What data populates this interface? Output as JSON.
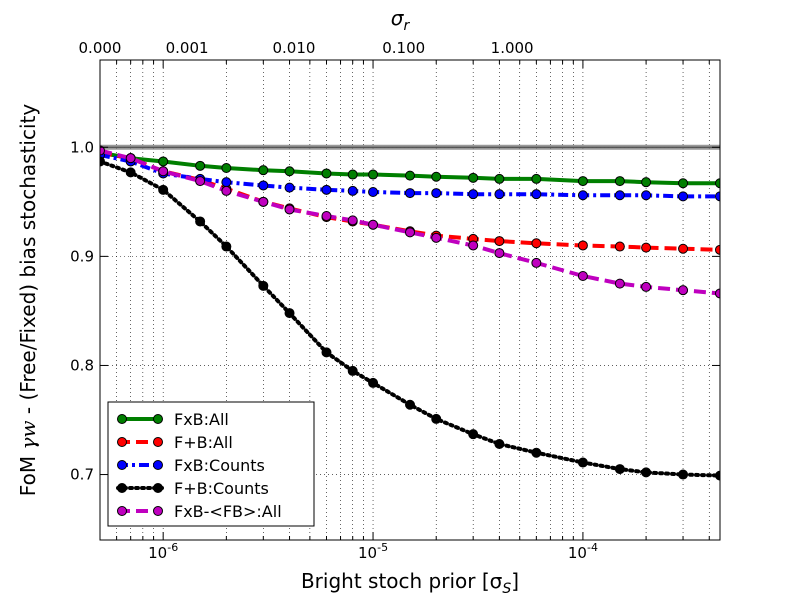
{
  "chart_data": {
    "type": "line",
    "xlabel": "Bright stoch prior [σ",
    "xlabel_sub": "S",
    "xlabel_close": "]",
    "ylabel_pre": "FoM ",
    "ylabel_math": "γw",
    "ylabel_post": " - (Free/Fixed) bias stochasticity",
    "top_axis_label": "σ",
    "top_axis_sub": "r",
    "x_scale": "log",
    "xlim": [
      5e-07,
      0.00045
    ],
    "ylim": [
      0.64,
      1.08
    ],
    "grid": true,
    "legend_position": "lower-left",
    "reference_line": {
      "y": 1.0,
      "color": "#808080"
    },
    "x_ticks": [
      {
        "value": 1e-06,
        "base": "10",
        "exp": "-6"
      },
      {
        "value": 1e-05,
        "base": "10",
        "exp": "-5"
      },
      {
        "value": 0.0001,
        "base": "10",
        "exp": "-4"
      }
    ],
    "y_ticks": [
      {
        "value": 0.7,
        "label": "0.7"
      },
      {
        "value": 0.8,
        "label": "0.8"
      },
      {
        "value": 0.9,
        "label": "0.9"
      },
      {
        "value": 1.0,
        "label": "1.0"
      }
    ],
    "top_ticks": [
      {
        "value": 5e-07,
        "label": "0.000"
      },
      {
        "value": 1.3e-06,
        "label": "0.001"
      },
      {
        "value": 4.2e-06,
        "label": "0.010"
      },
      {
        "value": 1.4e-05,
        "label": "0.100"
      },
      {
        "value": 4.6e-05,
        "label": "1.000"
      }
    ],
    "x": [
      5e-07,
      7e-07,
      1e-06,
      1.5e-06,
      2e-06,
      3e-06,
      4e-06,
      6e-06,
      8e-06,
      1e-05,
      1.5e-05,
      2e-05,
      3e-05,
      4e-05,
      6e-05,
      0.0001,
      0.00015,
      0.0002,
      0.0003,
      0.00045
    ],
    "series": [
      {
        "name": "FxB:All",
        "color": "#007f00",
        "dash": "solid",
        "values": [
          0.995,
          0.99,
          0.987,
          0.983,
          0.981,
          0.979,
          0.978,
          0.976,
          0.975,
          0.975,
          0.974,
          0.973,
          0.972,
          0.971,
          0.971,
          0.969,
          0.969,
          0.968,
          0.967,
          0.967
        ]
      },
      {
        "name": "F+B:All",
        "color": "#ff0000",
        "dash": "dashed",
        "values": [
          0.995,
          0.99,
          0.978,
          0.97,
          0.962,
          0.95,
          0.944,
          0.936,
          0.932,
          0.929,
          0.923,
          0.919,
          0.916,
          0.914,
          0.912,
          0.91,
          0.909,
          0.908,
          0.907,
          0.906
        ]
      },
      {
        "name": "FxB:Counts",
        "color": "#0000ff",
        "dash": "dashdot",
        "values": [
          0.993,
          0.987,
          0.976,
          0.971,
          0.968,
          0.965,
          0.963,
          0.961,
          0.96,
          0.959,
          0.958,
          0.958,
          0.957,
          0.957,
          0.957,
          0.956,
          0.956,
          0.956,
          0.955,
          0.955
        ]
      },
      {
        "name": "F+B:Counts",
        "color": "#000000",
        "dash": "dotted",
        "values": [
          0.987,
          0.977,
          0.961,
          0.932,
          0.909,
          0.873,
          0.848,
          0.812,
          0.795,
          0.784,
          0.764,
          0.751,
          0.737,
          0.728,
          0.72,
          0.711,
          0.705,
          0.702,
          0.7,
          0.699
        ]
      },
      {
        "name": "FxB-<FB>:All",
        "color": "#bf00bf",
        "dash": "dashed",
        "values": [
          0.997,
          0.99,
          0.978,
          0.969,
          0.96,
          0.95,
          0.943,
          0.937,
          0.933,
          0.929,
          0.922,
          0.917,
          0.91,
          0.903,
          0.894,
          0.882,
          0.875,
          0.872,
          0.869,
          0.866
        ]
      }
    ]
  }
}
